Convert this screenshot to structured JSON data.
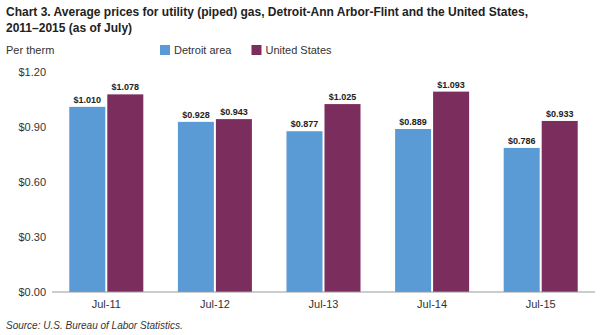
{
  "chart_data": {
    "type": "bar",
    "title": "Chart 3. Average prices for utility (piped) gas, Detroit-Ann Arbor-Flint and the United States,",
    "subtitle": "2011–2015  (as of July)",
    "y_label": "Per therm",
    "source": "Source: U.S. Bureau of Labor Statistics.",
    "categories": [
      "Jul-11",
      "Jul-12",
      "Jul-13",
      "Jul-14",
      "Jul-15"
    ],
    "series": [
      {
        "name": "Detroit area",
        "color": "#5B9BD5",
        "values": [
          1.01,
          0.928,
          0.877,
          0.889,
          0.786
        ],
        "value_labels": [
          "$1.010",
          "$0.928",
          "$0.877",
          "$0.889",
          "$0.786"
        ]
      },
      {
        "name": "United States",
        "color": "#7B2D5E",
        "values": [
          1.078,
          0.943,
          1.025,
          1.093,
          0.933
        ],
        "value_labels": [
          "$1.078",
          "$0.943",
          "$1.025",
          "$1.093",
          "$0.933"
        ]
      }
    ],
    "ylim": [
      0,
      1.2
    ],
    "yticks": [
      {
        "value": 0.0,
        "label": "$0.00"
      },
      {
        "value": 0.3,
        "label": "$0.30"
      },
      {
        "value": 0.6,
        "label": "$0.60"
      },
      {
        "value": 0.9,
        "label": "$0.90"
      },
      {
        "value": 1.2,
        "label": "$1.20"
      }
    ],
    "grid": false,
    "legend": "top",
    "data_labels": true
  }
}
